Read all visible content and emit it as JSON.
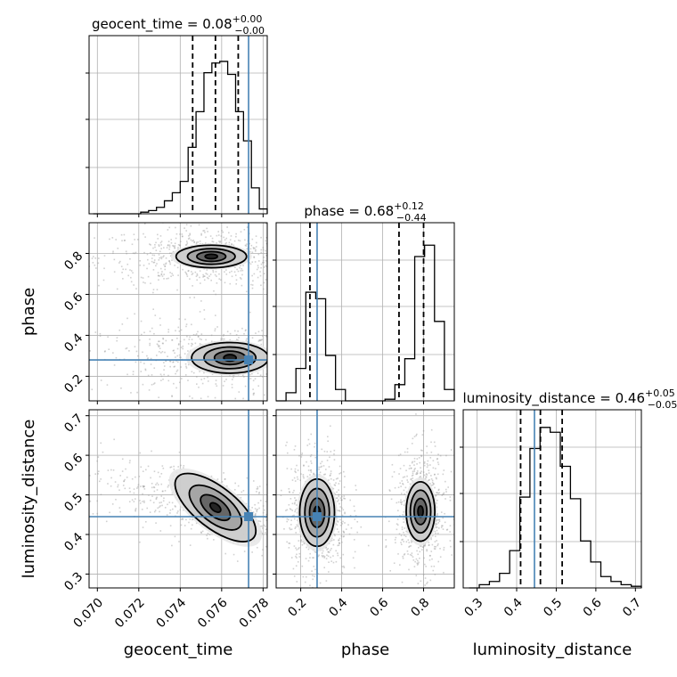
{
  "colors": {
    "truth": "#4682b4",
    "line": "#000000",
    "grid": "#b0b0b0",
    "scatter": "#9a9a9a"
  },
  "chart_data": {
    "type": "corner",
    "parameters": [
      {
        "key": "geocent_time",
        "label": "geocent_time",
        "range": [
          0.0696,
          0.0782
        ],
        "ticks": [
          0.07,
          0.072,
          0.074,
          0.076,
          0.078
        ],
        "tick_labels": [
          "0.070",
          "0.072",
          "0.074",
          "0.076",
          "0.078"
        ],
        "truth": 0.0773,
        "quantiles": [
          0.0746,
          0.0757,
          0.0768
        ],
        "title_main": "geocent_time = 0.08",
        "title_sup": "+0.00",
        "title_sub": "−0.00",
        "hist_edges_range": [
          0.0698,
          0.0782
        ],
        "hist": [
          0,
          0,
          0,
          0,
          0,
          0,
          0.01,
          0.02,
          0.04,
          0.08,
          0.13,
          0.2,
          0.41,
          0.63,
          0.87,
          0.93,
          0.94,
          0.86,
          0.63,
          0.45,
          0.16,
          0.03
        ]
      },
      {
        "key": "phase",
        "label": "phase",
        "range": [
          0.08,
          0.95
        ],
        "ticks": [
          0.2,
          0.4,
          0.6,
          0.8
        ],
        "tick_labels": [
          "0.2",
          "0.4",
          "0.6",
          "0.8"
        ],
        "truth": 0.28,
        "quantiles": [
          0.245,
          0.68,
          0.8
        ],
        "title_main": "phase = 0.68",
        "title_sup": "+0.12",
        "title_sub": "−0.44",
        "hist_edges_range": [
          0.08,
          0.95
        ],
        "hist": [
          0,
          0.05,
          0.2,
          0.67,
          0.63,
          0.28,
          0.07,
          0,
          0,
          0,
          0,
          0.01,
          0.1,
          0.26,
          0.89,
          0.96,
          0.49,
          0.07
        ]
      },
      {
        "key": "luminosity_distance",
        "label": "luminosity_distance",
        "range": [
          0.265,
          0.715
        ],
        "ticks": [
          0.3,
          0.4,
          0.5,
          0.6,
          0.7
        ],
        "tick_labels": [
          "0.3",
          "0.4",
          "0.5",
          "0.6",
          "0.7"
        ],
        "truth": 0.445,
        "quantiles": [
          0.41,
          0.46,
          0.515
        ],
        "title_main": "luminosity_distance = 0.46",
        "title_sup": "+0.05",
        "title_sub": "−0.05",
        "hist_edges_range": [
          0.28,
          0.715
        ],
        "hist": [
          0,
          0.02,
          0.04,
          0.09,
          0.23,
          0.56,
          0.86,
          0.99,
          0.96,
          0.75,
          0.55,
          0.29,
          0.16,
          0.07,
          0.04,
          0.02,
          0.01
        ]
      }
    ],
    "pairs": [
      {
        "x": "geocent_time",
        "y": "phase",
        "modes": [
          {
            "cx": 0.0755,
            "cy": 0.785,
            "levels": [
              [
                0.0017,
                0.055
              ],
              [
                0.00115,
                0.038
              ],
              [
                0.0007,
                0.024
              ],
              [
                0.0003,
                0.011
              ]
            ],
            "cloud": [
              0.0022,
              0.06
            ]
          },
          {
            "cx": 0.0764,
            "cy": 0.29,
            "levels": [
              [
                0.00185,
                0.075
              ],
              [
                0.00125,
                0.053
              ],
              [
                0.00075,
                0.033
              ],
              [
                0.0003,
                0.016
              ]
            ],
            "cloud": [
              0.0025,
              0.07
            ]
          }
        ]
      },
      {
        "x": "geocent_time",
        "y": "luminosity_distance",
        "modes": [
          {
            "cx": 0.0757,
            "cy": 0.468,
            "tilt": -0.78,
            "levels": [
              [
                0.00235,
                0.052
              ],
              [
                0.0015,
                0.037
              ],
              [
                0.00085,
                0.022
              ],
              [
                0.0003,
                0.009
              ]
            ],
            "cloud": [
              0.0028,
              0.06
            ]
          }
        ]
      },
      {
        "x": "phase",
        "y": "luminosity_distance",
        "modes": [
          {
            "cx": 0.28,
            "cy": 0.455,
            "levels": [
              [
                0.085,
                0.085
              ],
              [
                0.06,
                0.061
              ],
              [
                0.037,
                0.037
              ],
              [
                0.016,
                0.016
              ]
            ],
            "cloud": [
              0.06,
              0.065
            ]
          },
          {
            "cx": 0.785,
            "cy": 0.458,
            "levels": [
              [
                0.07,
                0.075
              ],
              [
                0.05,
                0.054
              ],
              [
                0.031,
                0.033
              ],
              [
                0.013,
                0.014
              ]
            ],
            "cloud": [
              0.05,
              0.06
            ]
          }
        ]
      }
    ]
  }
}
